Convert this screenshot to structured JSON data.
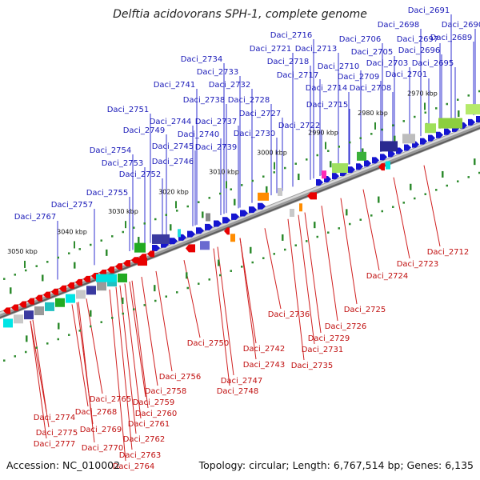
{
  "title": "Delftia acidovorans SPH-1, complete genome",
  "footer": {
    "accession": "Accession: NC_010002",
    "topology": "Topology: circular; Length: 6,767,514 bp; Genes: 6,135"
  },
  "colors": {
    "top_label": "#1a1ab8",
    "bottom_label": "#c01010",
    "backbone": "#7a7a7a",
    "tick": "#2e8b2e"
  },
  "ticks": [
    {
      "label": "3050 kbp",
      "bp": 3050000
    },
    {
      "label": "3040 kbp",
      "bp": 3040000
    },
    {
      "label": "3030 kbp",
      "bp": 3030000
    },
    {
      "label": "3020 kbp",
      "bp": 3020000
    },
    {
      "label": "3010 kbp",
      "bp": 3010000
    },
    {
      "label": "3000 kbp",
      "bp": 3000000
    },
    {
      "label": "2990 kbp",
      "bp": 2990000
    },
    {
      "label": "2980 kbp",
      "bp": 2980000
    },
    {
      "label": "2970 kbp",
      "bp": 2970000
    }
  ],
  "top_labels": [
    "Daci_2691",
    "Daci_2698",
    "Daci_2690",
    "Daci_2716",
    "Daci_2706",
    "Daci_2697",
    "Daci_2689",
    "Daci_2721",
    "Daci_2713",
    "Daci_2705",
    "Daci_2696",
    "Daci_2734",
    "Daci_2718",
    "Daci_2710",
    "Daci_2703",
    "Daci_2695",
    "Daci_2733",
    "Daci_2717",
    "Daci_2709",
    "Daci_2701",
    "Daci_2741",
    "Daci_2732",
    "Daci_2714",
    "Daci_2708",
    "Daci_2738",
    "Daci_2728",
    "Daci_2715",
    "Daci_2751",
    "Daci_2727",
    "Daci_2744",
    "Daci_2737",
    "Daci_2722",
    "Daci_2749",
    "Daci_2740",
    "Daci_2730",
    "Daci_2745",
    "Daci_2739",
    "Daci_2754",
    "Daci_2746",
    "Daci_2753",
    "Daci_2752",
    "Daci_2755",
    "Daci_2757",
    "Daci_2767"
  ],
  "bottom_labels": [
    "Daci_2712",
    "Daci_2723",
    "Daci_2724",
    "Daci_2725",
    "Daci_2736",
    "Daci_2726",
    "Daci_2729",
    "Daci_2731",
    "Daci_2735",
    "Daci_2750",
    "Daci_2742",
    "Daci_2743",
    "Daci_2756",
    "Daci_2747",
    "Daci_2748",
    "Daci_2758",
    "Daci_2765",
    "Daci_2759",
    "Daci_2768",
    "Daci_2760",
    "Daci_2774",
    "Daci_2761",
    "Daci_2769",
    "Daci_2775",
    "Daci_2762",
    "Daci_2777",
    "Daci_2770",
    "Daci_2763",
    "Daci_2764"
  ]
}
